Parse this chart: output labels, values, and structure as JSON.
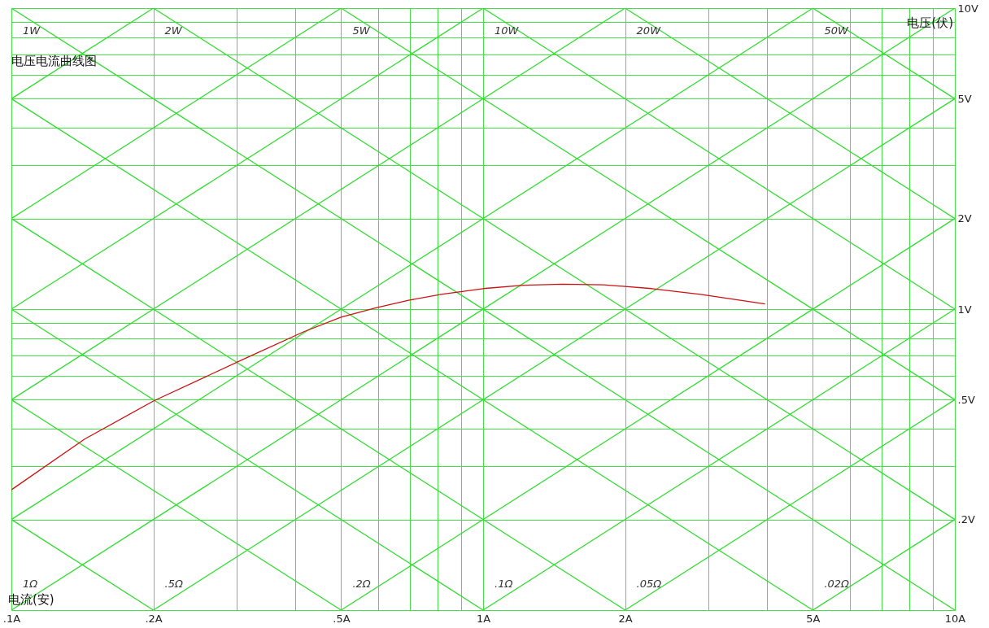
{
  "chart_data": {
    "type": "line",
    "title": "电压电流曲线图",
    "xlabel": "电流(安)",
    "ylabel": "电压(伏)",
    "log": "xy",
    "grid": true,
    "marker": "none",
    "line_style": "solid",
    "xlim": [
      0.1,
      10
    ],
    "ylim": [
      0.1,
      10
    ],
    "xticks": [
      {
        "value": 0.1,
        "label": ".1A"
      },
      {
        "value": 0.2,
        "label": ".2A"
      },
      {
        "value": 0.3,
        "label": null
      },
      {
        "value": 0.4,
        "label": null
      },
      {
        "value": 0.5,
        "label": ".5A"
      },
      {
        "value": 0.6,
        "label": null
      },
      {
        "value": 0.7,
        "label": null
      },
      {
        "value": 0.8,
        "label": null
      },
      {
        "value": 0.9,
        "label": null
      },
      {
        "value": 1,
        "label": "1A"
      },
      {
        "value": 2,
        "label": "2A"
      },
      {
        "value": 3,
        "label": null
      },
      {
        "value": 4,
        "label": null
      },
      {
        "value": 5,
        "label": "5A"
      },
      {
        "value": 6,
        "label": null
      },
      {
        "value": 7,
        "label": null
      },
      {
        "value": 8,
        "label": null
      },
      {
        "value": 9,
        "label": null
      },
      {
        "value": 10,
        "label": "10A"
      }
    ],
    "yticks": [
      {
        "value": 0.1,
        "label": null
      },
      {
        "value": 0.2,
        "label": ".2V"
      },
      {
        "value": 0.3,
        "label": null
      },
      {
        "value": 0.4,
        "label": null
      },
      {
        "value": 0.5,
        "label": ".5V"
      },
      {
        "value": 0.6,
        "label": null
      },
      {
        "value": 0.7,
        "label": null
      },
      {
        "value": 0.8,
        "label": null
      },
      {
        "value": 0.9,
        "label": null
      },
      {
        "value": 1,
        "label": "1V"
      },
      {
        "value": 2,
        "label": "2V"
      },
      {
        "value": 3,
        "label": null
      },
      {
        "value": 4,
        "label": null
      },
      {
        "value": 5,
        "label": "5V"
      },
      {
        "value": 6,
        "label": null
      },
      {
        "value": 7,
        "label": null
      },
      {
        "value": 8,
        "label": null
      },
      {
        "value": 9,
        "label": null
      },
      {
        "value": 10,
        "label": "10V"
      }
    ],
    "series": [
      {
        "color": "#33dd33",
        "x": [
          0.1,
          0.2
        ],
        "values": [
          0.2,
          0.1
        ]
      },
      {
        "color": "#33dd33",
        "x": [
          0.1,
          0.5
        ],
        "values": [
          0.5,
          0.1
        ]
      },
      {
        "color": "#33dd33",
        "x": [
          0.1,
          1
        ],
        "values": [
          1,
          0.1
        ]
      },
      {
        "color": "#33dd33",
        "x": [
          0.1,
          2
        ],
        "values": [
          2,
          0.1
        ]
      },
      {
        "color": "#33dd33",
        "x": [
          0.1,
          5
        ],
        "values": [
          5,
          0.1
        ]
      },
      {
        "name": "1W",
        "color": "#33dd33",
        "x": [
          0.1,
          10
        ],
        "values": [
          10,
          0.1
        ]
      },
      {
        "name": "2W",
        "color": "#33dd33",
        "x": [
          0.2,
          10
        ],
        "values": [
          10,
          0.2
        ]
      },
      {
        "name": "5W",
        "color": "#33dd33",
        "x": [
          0.5,
          10
        ],
        "values": [
          10,
          0.5
        ]
      },
      {
        "name": "10W",
        "color": "#33dd33",
        "x": [
          1,
          10
        ],
        "values": [
          10,
          1
        ]
      },
      {
        "name": "20W",
        "color": "#33dd33",
        "x": [
          2,
          10
        ],
        "values": [
          10,
          2
        ]
      },
      {
        "name": "50W",
        "color": "#33dd33",
        "x": [
          5,
          10
        ],
        "values": [
          10,
          5
        ]
      },
      {
        "name": ".02Ω",
        "color": "#33dd33",
        "x": [
          5,
          10
        ],
        "values": [
          0.1,
          0.2
        ]
      },
      {
        "name": ".05Ω",
        "color": "#33dd33",
        "x": [
          2,
          10
        ],
        "values": [
          0.1,
          0.5
        ]
      },
      {
        "name": ".1Ω",
        "color": "#33dd33",
        "x": [
          1,
          10
        ],
        "values": [
          0.1,
          1
        ]
      },
      {
        "name": ".2Ω",
        "color": "#33dd33",
        "x": [
          0.5,
          10
        ],
        "values": [
          0.1,
          2
        ]
      },
      {
        "name": ".5Ω",
        "color": "#33dd33",
        "x": [
          0.2,
          10
        ],
        "values": [
          0.1,
          5
        ]
      },
      {
        "name": "1Ω",
        "color": "#33dd33",
        "x": [
          0.1,
          10
        ],
        "values": [
          0.1,
          10
        ]
      },
      {
        "color": "#33dd33",
        "x": [
          0.1,
          5
        ],
        "values": [
          0.2,
          10
        ]
      },
      {
        "color": "#33dd33",
        "x": [
          0.1,
          2
        ],
        "values": [
          0.5,
          10
        ]
      },
      {
        "color": "#33dd33",
        "x": [
          0.1,
          1
        ],
        "values": [
          1,
          10
        ]
      },
      {
        "color": "#33dd33",
        "x": [
          0.1,
          0.5
        ],
        "values": [
          2,
          10
        ]
      },
      {
        "color": "#33dd33",
        "x": [
          0.1,
          0.2
        ],
        "values": [
          5,
          10
        ]
      },
      {
        "color": "#cc1111",
        "x": [
          0.1,
          0.143,
          0.2,
          0.315,
          0.416,
          0.5,
          0.593,
          0.695,
          0.814,
          1,
          1.22,
          1.47,
          1.8,
          2.28,
          2.89,
          3.96
        ],
        "values": [
          0.251,
          0.37,
          0.495,
          0.689,
          0.84,
          0.94,
          1.01,
          1.07,
          1.12,
          1.17,
          1.2,
          1.21,
          1.205,
          1.17,
          1.12,
          1.04
        ]
      }
    ]
  }
}
